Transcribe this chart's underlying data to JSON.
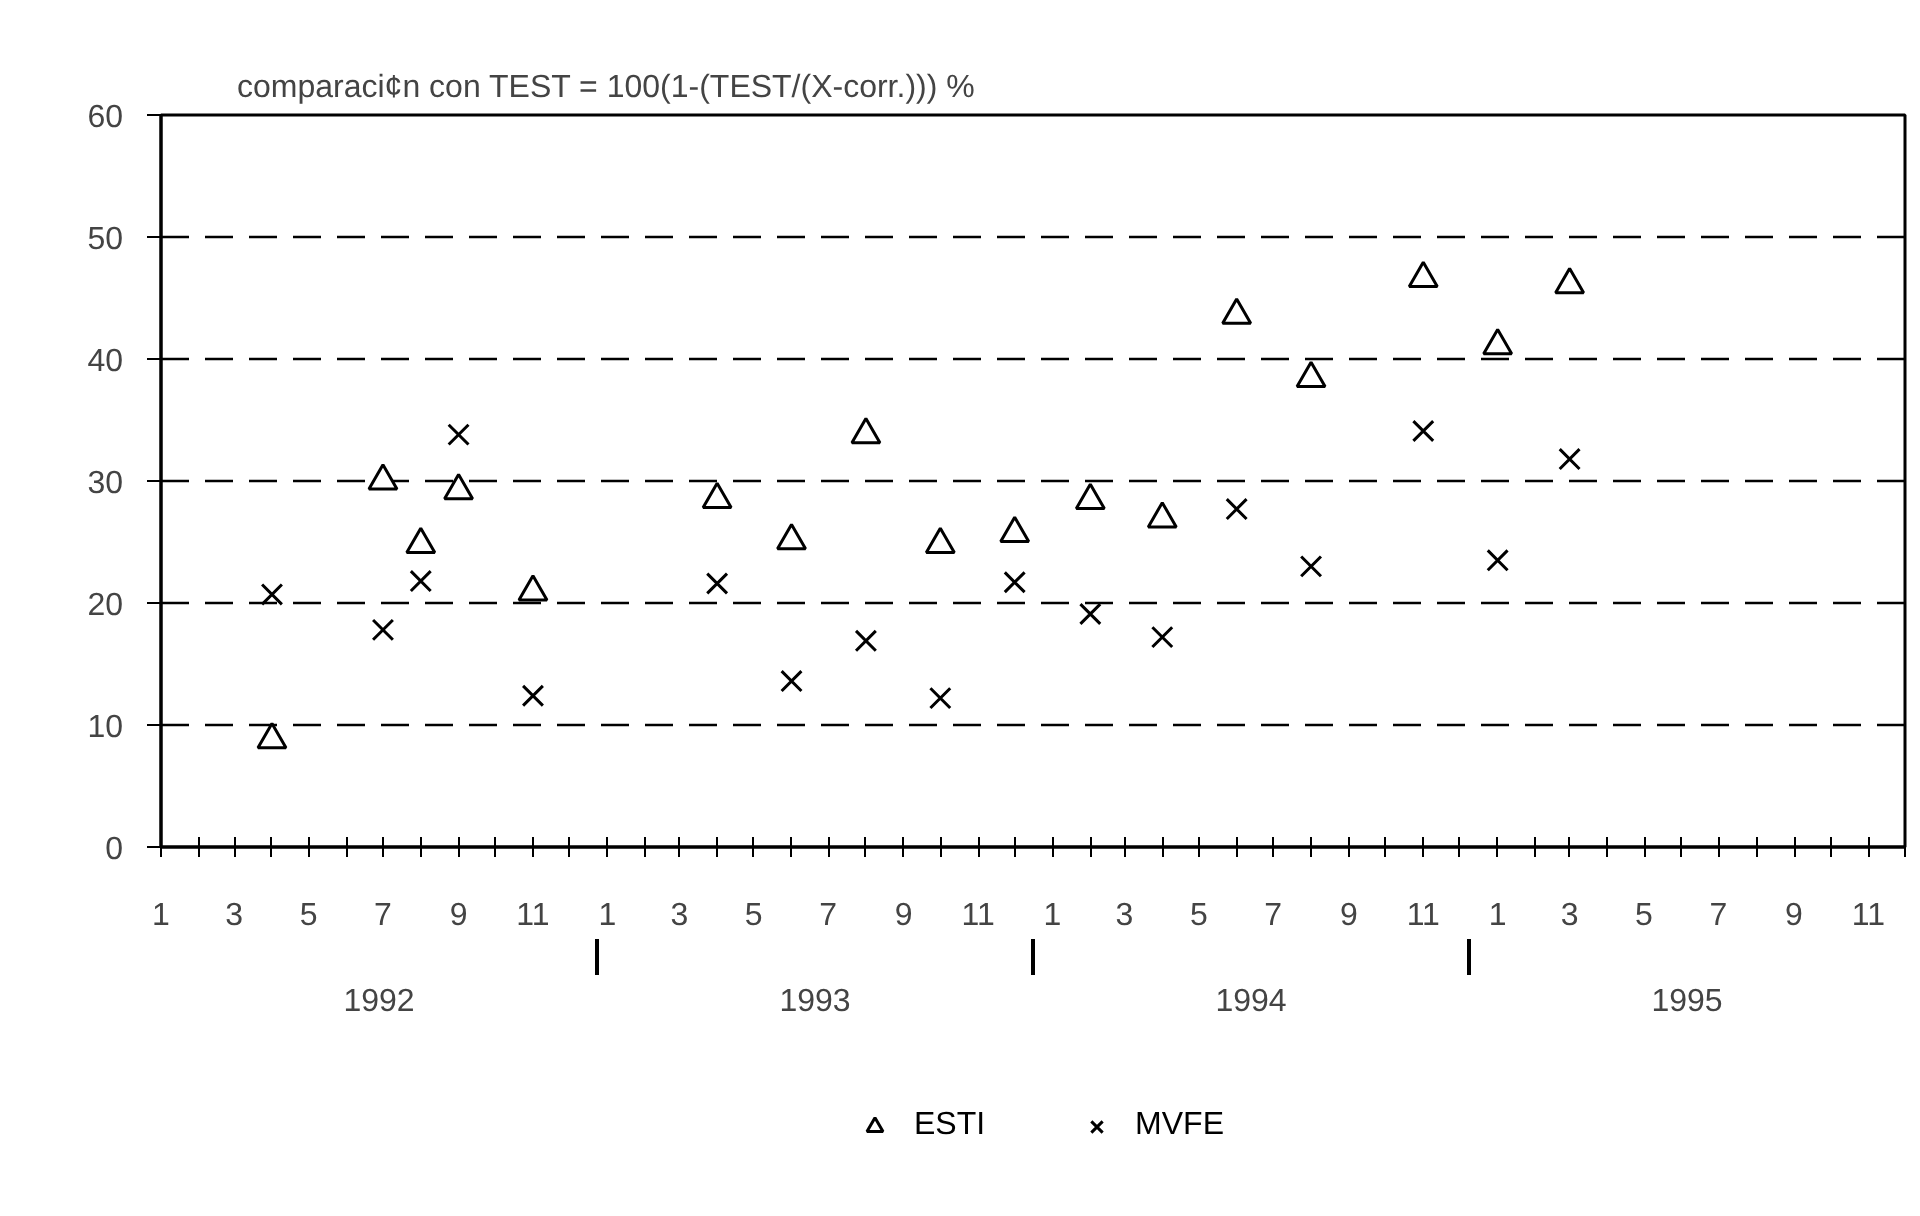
{
  "chart_data": {
    "type": "scatter",
    "title": "comparaci¢n con TEST =  100(1-(TEST/(X-corr.))) %",
    "x": [
      "1992-04",
      "1992-07",
      "1992-08",
      "1992-09",
      "1992-11",
      "1993-04",
      "1993-06",
      "1993-08",
      "1993-10",
      "1993-12",
      "1994-02",
      "1994-04",
      "1994-06",
      "1994-08",
      "1994-11",
      "1995-01",
      "1995-03"
    ],
    "series": [
      {
        "name": "ESTI",
        "color": "#000000",
        "marker": "triangle",
        "values": [
          8.8,
          30.0,
          24.8,
          29.2,
          20.9,
          28.5,
          25.1,
          33.8,
          24.8,
          25.7,
          28.4,
          26.9,
          43.6,
          38.4,
          46.6,
          41.1,
          46.1
        ]
      },
      {
        "name": "MVFE",
        "color": "#000000",
        "marker": "cross",
        "values": [
          20.7,
          17.8,
          21.8,
          33.8,
          12.4,
          21.6,
          13.6,
          16.9,
          12.2,
          21.7,
          19.1,
          17.2,
          27.7,
          23.0,
          34.1,
          23.5,
          31.8
        ]
      }
    ],
    "xlim": [
      "1992-01",
      "1995-12"
    ],
    "xticks": [
      {
        "value": "1992-01",
        "label": "1"
      },
      {
        "value": "1992-02",
        "label": null
      },
      {
        "value": "1992-03",
        "label": "3"
      },
      {
        "value": "1992-04",
        "label": null
      },
      {
        "value": "1992-05",
        "label": "5"
      },
      {
        "value": "1992-06",
        "label": null
      },
      {
        "value": "1992-07",
        "label": "7"
      },
      {
        "value": "1992-08",
        "label": null
      },
      {
        "value": "1992-09",
        "label": "9"
      },
      {
        "value": "1992-10",
        "label": null
      },
      {
        "value": "1992-11",
        "label": "11"
      },
      {
        "value": "1992-12",
        "label": null
      },
      {
        "value": "1993-01",
        "label": "1"
      },
      {
        "value": "1993-02",
        "label": null
      },
      {
        "value": "1993-03",
        "label": "3"
      },
      {
        "value": "1993-04",
        "label": null
      },
      {
        "value": "1993-05",
        "label": "5"
      },
      {
        "value": "1993-06",
        "label": null
      },
      {
        "value": "1993-07",
        "label": "7"
      },
      {
        "value": "1993-08",
        "label": null
      },
      {
        "value": "1993-09",
        "label": "9"
      },
      {
        "value": "1993-10",
        "label": null
      },
      {
        "value": "1993-11",
        "label": "11"
      },
      {
        "value": "1993-12",
        "label": null
      },
      {
        "value": "1994-01",
        "label": "1"
      },
      {
        "value": "1994-02",
        "label": null
      },
      {
        "value": "1994-03",
        "label": "3"
      },
      {
        "value": "1994-04",
        "label": null
      },
      {
        "value": "1994-05",
        "label": "5"
      },
      {
        "value": "1994-06",
        "label": null
      },
      {
        "value": "1994-07",
        "label": "7"
      },
      {
        "value": "1994-08",
        "label": null
      },
      {
        "value": "1994-09",
        "label": "9"
      },
      {
        "value": "1994-10",
        "label": null
      },
      {
        "value": "1994-11",
        "label": "11"
      },
      {
        "value": "1994-12",
        "label": null
      },
      {
        "value": "1995-01",
        "label": "1"
      },
      {
        "value": "1995-02",
        "label": null
      },
      {
        "value": "1995-03",
        "label": "3"
      },
      {
        "value": "1995-04",
        "label": null
      },
      {
        "value": "1995-05",
        "label": "5"
      },
      {
        "value": "1995-06",
        "label": null
      },
      {
        "value": "1995-07",
        "label": "7"
      },
      {
        "value": "1995-08",
        "label": null
      },
      {
        "value": "1995-09",
        "label": "9"
      },
      {
        "value": "1995-10",
        "label": null
      },
      {
        "value": "1995-11",
        "label": "11"
      },
      {
        "value": "1995-12",
        "label": null
      }
    ],
    "ylim": [
      0,
      60
    ],
    "yticks": [
      0,
      10,
      20,
      30,
      40,
      50,
      60
    ],
    "annotations": [
      "1992",
      "1993",
      "1994",
      "1995"
    ],
    "grid": "y",
    "legend": "bottom"
  }
}
